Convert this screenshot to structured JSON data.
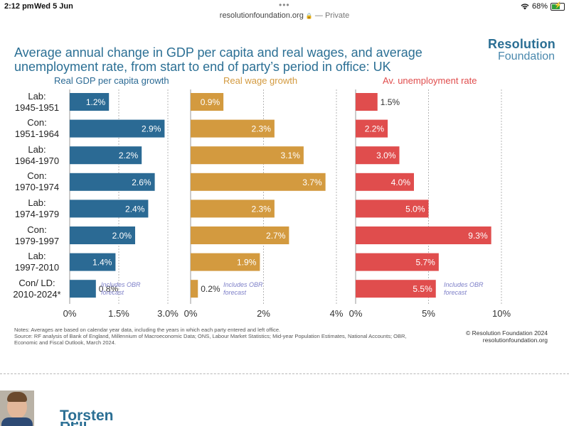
{
  "status_bar": {
    "time": "2:12 pm",
    "date": "Wed 5 Jun",
    "url": "resolutionfoundation.org",
    "privacy": "— Private",
    "battery": "68%"
  },
  "brand": {
    "line1": "Resolution",
    "line2": "Foundation"
  },
  "chart_data": {
    "type": "bar",
    "orientation": "horizontal",
    "title": "Average annual change in GDP per capita and real wages, and average unemployment rate, from start to end of party’s period in office: UK",
    "categories": [
      [
        "Lab:",
        "1945-1951"
      ],
      [
        "Con:",
        "1951-1964"
      ],
      [
        "Lab:",
        "1964-1970"
      ],
      [
        "Con:",
        "1970-1974"
      ],
      [
        "Lab:",
        "1974-1979"
      ],
      [
        "Con:",
        "1979-1997"
      ],
      [
        "Lab:",
        "1997-2010"
      ],
      [
        "Con/ LD:",
        "2010-2024*"
      ]
    ],
    "panels": [
      {
        "name": "Real GDP per capita growth",
        "color": "#2b6a94",
        "values": [
          1.2,
          2.9,
          2.2,
          2.6,
          2.4,
          2.0,
          1.4,
          0.8
        ],
        "labels": [
          "1.2%",
          "2.9%",
          "2.2%",
          "2.6%",
          "2.4%",
          "2.0%",
          "1.4%",
          "0.8%"
        ],
        "xlim": [
          0,
          3.0
        ],
        "ticks": [
          0,
          1.5,
          3.0
        ],
        "tick_labels": [
          "0%",
          "1.5%",
          "3.0%"
        ],
        "note": "Includes OBR forecast"
      },
      {
        "name": "Real wage growth",
        "color": "#d39a3f",
        "values": [
          0.9,
          2.3,
          3.1,
          3.7,
          2.3,
          2.7,
          1.9,
          0.2
        ],
        "labels": [
          "0.9%",
          "2.3%",
          "3.1%",
          "3.7%",
          "2.3%",
          "2.7%",
          "1.9%",
          "0.2%"
        ],
        "xlim": [
          0,
          4.0
        ],
        "ticks": [
          0,
          2,
          4
        ],
        "tick_labels": [
          "0%",
          "2%",
          "4%"
        ],
        "note": "Includes OBR forecast"
      },
      {
        "name": "Av. unemployment rate",
        "color": "#e04d4d",
        "values": [
          1.5,
          2.2,
          3.0,
          4.0,
          5.0,
          9.3,
          5.7,
          5.5
        ],
        "labels": [
          "1.5%",
          "2.2%",
          "3.0%",
          "4.0%",
          "5.0%",
          "9.3%",
          "5.7%",
          "5.5%"
        ],
        "xlim": [
          0,
          10
        ],
        "ticks": [
          0,
          5,
          10
        ],
        "tick_labels": [
          "0%",
          "5%",
          "10%"
        ],
        "note": "Includes OBR forecast"
      }
    ]
  },
  "notes": {
    "line1": "Notes: Averages are based on calendar year data, including the years in which each party entered and left office.",
    "line2": "Source: RF analysis of Bank of England, Millennium of Macroeconomic Data; ONS, Labour Market Statistics; Mid-year Population Estimates, National Accounts; OBR,",
    "line3": "Economic and Fiscal Outlook, March 2024."
  },
  "copyright": {
    "line1": "© Resolution Foundation 2024",
    "line2": "resolutionfoundation.org"
  },
  "author": {
    "name": "Torsten",
    "surname": "Bell"
  }
}
